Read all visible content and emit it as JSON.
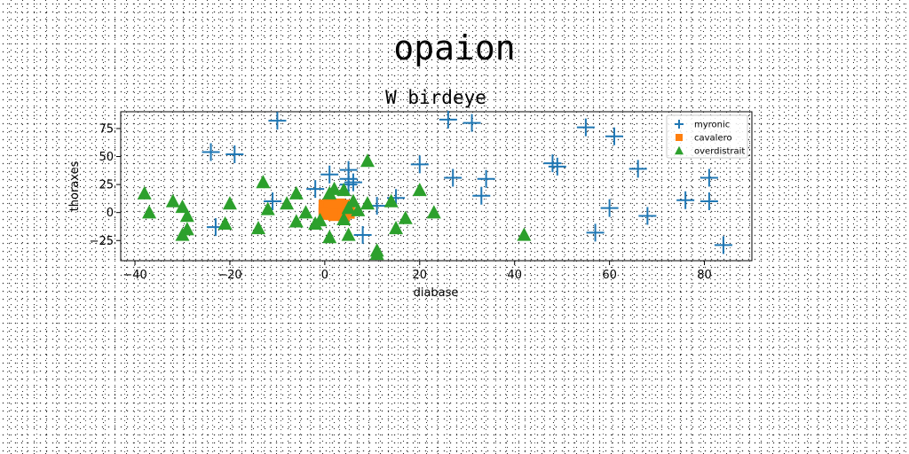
{
  "figure_title": "opaion",
  "chart_data": {
    "type": "scatter",
    "title": "W birdeye",
    "xlabel": "diabase",
    "ylabel": "thoraxes",
    "xlim": [
      -43,
      90
    ],
    "ylim": [
      -43,
      90
    ],
    "xticks": [
      -40,
      -20,
      0,
      20,
      40,
      60,
      80
    ],
    "yticks": [
      -25,
      0,
      25,
      50,
      75
    ],
    "xtick_labels": [
      "−40",
      "−20",
      "0",
      "20",
      "40",
      "60",
      "80"
    ],
    "ytick_labels": [
      "−25",
      "0",
      "25",
      "50",
      "75"
    ],
    "grid": false,
    "legend_position": "top-right",
    "series": [
      {
        "name": "myronic",
        "marker": "plus",
        "color": "#1f77b4",
        "points": [
          [
            -10,
            82
          ],
          [
            -24,
            54
          ],
          [
            -19,
            52
          ],
          [
            -23,
            -13
          ],
          [
            -11,
            10
          ],
          [
            -2,
            21
          ],
          [
            1,
            34
          ],
          [
            5,
            38
          ],
          [
            5,
            30
          ],
          [
            5,
            25
          ],
          [
            6,
            27
          ],
          [
            8,
            -20
          ],
          [
            11,
            6
          ],
          [
            15,
            13
          ],
          [
            20,
            43
          ],
          [
            26,
            83
          ],
          [
            27,
            31
          ],
          [
            31,
            80
          ],
          [
            33,
            15
          ],
          [
            34,
            30
          ],
          [
            48,
            44
          ],
          [
            49,
            41
          ],
          [
            55,
            76
          ],
          [
            57,
            -18
          ],
          [
            60,
            4
          ],
          [
            61,
            68
          ],
          [
            66,
            39
          ],
          [
            68,
            -3
          ],
          [
            76,
            11
          ],
          [
            81,
            31
          ],
          [
            81,
            10
          ],
          [
            84,
            -29
          ]
        ]
      },
      {
        "name": "cavalero",
        "marker": "square",
        "color": "#ff7f0e",
        "points": [
          [
            0,
            2
          ],
          [
            0,
            6
          ],
          [
            1,
            0
          ],
          [
            1,
            4
          ],
          [
            2,
            2
          ],
          [
            2,
            6
          ],
          [
            3,
            -1
          ],
          [
            3,
            3
          ],
          [
            4,
            1
          ],
          [
            4,
            5
          ],
          [
            5,
            0
          ],
          [
            5,
            4
          ],
          [
            1,
            7
          ],
          [
            3,
            7
          ],
          [
            5,
            6
          ],
          [
            0,
            -1
          ],
          [
            2,
            -2
          ],
          [
            4,
            -2
          ]
        ]
      },
      {
        "name": "overdistrait",
        "marker": "triangle",
        "color": "#2ca02c",
        "points": [
          [
            -38,
            17
          ],
          [
            -37,
            0
          ],
          [
            -32,
            10
          ],
          [
            -30,
            5
          ],
          [
            -30,
            -20
          ],
          [
            -29,
            -15
          ],
          [
            -29,
            -3
          ],
          [
            -21,
            -10
          ],
          [
            -20,
            8
          ],
          [
            -13,
            27
          ],
          [
            -12,
            3
          ],
          [
            -14,
            -14
          ],
          [
            -6,
            17
          ],
          [
            -8,
            8
          ],
          [
            -6,
            -8
          ],
          [
            -4,
            0
          ],
          [
            -2,
            -10
          ],
          [
            -1,
            -7
          ],
          [
            1,
            17
          ],
          [
            2,
            21
          ],
          [
            1,
            -22
          ],
          [
            4,
            20
          ],
          [
            4,
            -6
          ],
          [
            5,
            4
          ],
          [
            6,
            10
          ],
          [
            5,
            -20
          ],
          [
            7,
            2
          ],
          [
            9,
            46
          ],
          [
            9,
            8
          ],
          [
            11,
            -34
          ],
          [
            11,
            -37
          ],
          [
            14,
            10
          ],
          [
            15,
            -14
          ],
          [
            17,
            -5
          ],
          [
            20,
            20
          ],
          [
            23,
            0
          ],
          [
            42,
            -20
          ]
        ]
      }
    ]
  }
}
